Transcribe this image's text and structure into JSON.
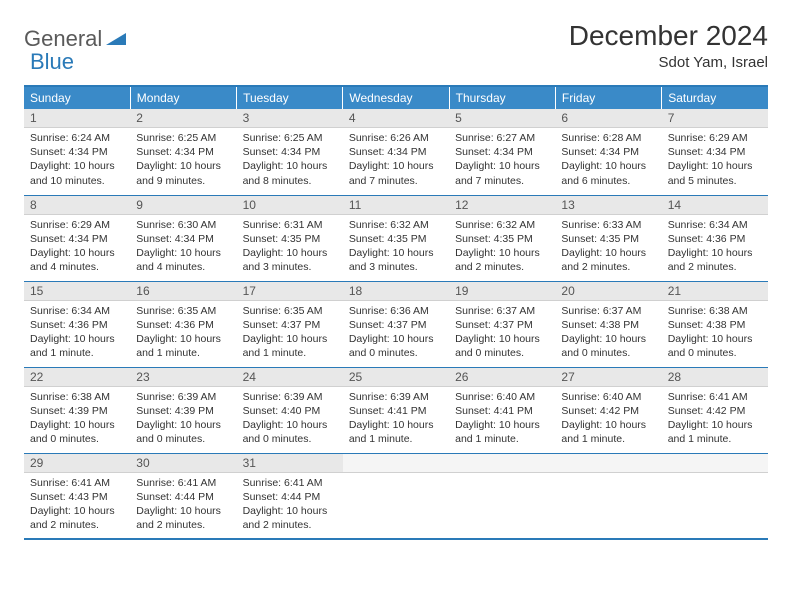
{
  "logo": {
    "general": "General",
    "blue": "Blue"
  },
  "header": {
    "month": "December 2024",
    "location": "Sdot Yam, Israel"
  },
  "colors": {
    "accent": "#3a8ac8",
    "border": "#2a7ab8",
    "daynum_bg": "#e8e8e8",
    "text": "#333333"
  },
  "weekdays": [
    "Sunday",
    "Monday",
    "Tuesday",
    "Wednesday",
    "Thursday",
    "Friday",
    "Saturday"
  ],
  "days": [
    {
      "n": "1",
      "sunrise": "Sunrise: 6:24 AM",
      "sunset": "Sunset: 4:34 PM",
      "daylight": "Daylight: 10 hours and 10 minutes."
    },
    {
      "n": "2",
      "sunrise": "Sunrise: 6:25 AM",
      "sunset": "Sunset: 4:34 PM",
      "daylight": "Daylight: 10 hours and 9 minutes."
    },
    {
      "n": "3",
      "sunrise": "Sunrise: 6:25 AM",
      "sunset": "Sunset: 4:34 PM",
      "daylight": "Daylight: 10 hours and 8 minutes."
    },
    {
      "n": "4",
      "sunrise": "Sunrise: 6:26 AM",
      "sunset": "Sunset: 4:34 PM",
      "daylight": "Daylight: 10 hours and 7 minutes."
    },
    {
      "n": "5",
      "sunrise": "Sunrise: 6:27 AM",
      "sunset": "Sunset: 4:34 PM",
      "daylight": "Daylight: 10 hours and 7 minutes."
    },
    {
      "n": "6",
      "sunrise": "Sunrise: 6:28 AM",
      "sunset": "Sunset: 4:34 PM",
      "daylight": "Daylight: 10 hours and 6 minutes."
    },
    {
      "n": "7",
      "sunrise": "Sunrise: 6:29 AM",
      "sunset": "Sunset: 4:34 PM",
      "daylight": "Daylight: 10 hours and 5 minutes."
    },
    {
      "n": "8",
      "sunrise": "Sunrise: 6:29 AM",
      "sunset": "Sunset: 4:34 PM",
      "daylight": "Daylight: 10 hours and 4 minutes."
    },
    {
      "n": "9",
      "sunrise": "Sunrise: 6:30 AM",
      "sunset": "Sunset: 4:34 PM",
      "daylight": "Daylight: 10 hours and 4 minutes."
    },
    {
      "n": "10",
      "sunrise": "Sunrise: 6:31 AM",
      "sunset": "Sunset: 4:35 PM",
      "daylight": "Daylight: 10 hours and 3 minutes."
    },
    {
      "n": "11",
      "sunrise": "Sunrise: 6:32 AM",
      "sunset": "Sunset: 4:35 PM",
      "daylight": "Daylight: 10 hours and 3 minutes."
    },
    {
      "n": "12",
      "sunrise": "Sunrise: 6:32 AM",
      "sunset": "Sunset: 4:35 PM",
      "daylight": "Daylight: 10 hours and 2 minutes."
    },
    {
      "n": "13",
      "sunrise": "Sunrise: 6:33 AM",
      "sunset": "Sunset: 4:35 PM",
      "daylight": "Daylight: 10 hours and 2 minutes."
    },
    {
      "n": "14",
      "sunrise": "Sunrise: 6:34 AM",
      "sunset": "Sunset: 4:36 PM",
      "daylight": "Daylight: 10 hours and 2 minutes."
    },
    {
      "n": "15",
      "sunrise": "Sunrise: 6:34 AM",
      "sunset": "Sunset: 4:36 PM",
      "daylight": "Daylight: 10 hours and 1 minute."
    },
    {
      "n": "16",
      "sunrise": "Sunrise: 6:35 AM",
      "sunset": "Sunset: 4:36 PM",
      "daylight": "Daylight: 10 hours and 1 minute."
    },
    {
      "n": "17",
      "sunrise": "Sunrise: 6:35 AM",
      "sunset": "Sunset: 4:37 PM",
      "daylight": "Daylight: 10 hours and 1 minute."
    },
    {
      "n": "18",
      "sunrise": "Sunrise: 6:36 AM",
      "sunset": "Sunset: 4:37 PM",
      "daylight": "Daylight: 10 hours and 0 minutes."
    },
    {
      "n": "19",
      "sunrise": "Sunrise: 6:37 AM",
      "sunset": "Sunset: 4:37 PM",
      "daylight": "Daylight: 10 hours and 0 minutes."
    },
    {
      "n": "20",
      "sunrise": "Sunrise: 6:37 AM",
      "sunset": "Sunset: 4:38 PM",
      "daylight": "Daylight: 10 hours and 0 minutes."
    },
    {
      "n": "21",
      "sunrise": "Sunrise: 6:38 AM",
      "sunset": "Sunset: 4:38 PM",
      "daylight": "Daylight: 10 hours and 0 minutes."
    },
    {
      "n": "22",
      "sunrise": "Sunrise: 6:38 AM",
      "sunset": "Sunset: 4:39 PM",
      "daylight": "Daylight: 10 hours and 0 minutes."
    },
    {
      "n": "23",
      "sunrise": "Sunrise: 6:39 AM",
      "sunset": "Sunset: 4:39 PM",
      "daylight": "Daylight: 10 hours and 0 minutes."
    },
    {
      "n": "24",
      "sunrise": "Sunrise: 6:39 AM",
      "sunset": "Sunset: 4:40 PM",
      "daylight": "Daylight: 10 hours and 0 minutes."
    },
    {
      "n": "25",
      "sunrise": "Sunrise: 6:39 AM",
      "sunset": "Sunset: 4:41 PM",
      "daylight": "Daylight: 10 hours and 1 minute."
    },
    {
      "n": "26",
      "sunrise": "Sunrise: 6:40 AM",
      "sunset": "Sunset: 4:41 PM",
      "daylight": "Daylight: 10 hours and 1 minute."
    },
    {
      "n": "27",
      "sunrise": "Sunrise: 6:40 AM",
      "sunset": "Sunset: 4:42 PM",
      "daylight": "Daylight: 10 hours and 1 minute."
    },
    {
      "n": "28",
      "sunrise": "Sunrise: 6:41 AM",
      "sunset": "Sunset: 4:42 PM",
      "daylight": "Daylight: 10 hours and 1 minute."
    },
    {
      "n": "29",
      "sunrise": "Sunrise: 6:41 AM",
      "sunset": "Sunset: 4:43 PM",
      "daylight": "Daylight: 10 hours and 2 minutes."
    },
    {
      "n": "30",
      "sunrise": "Sunrise: 6:41 AM",
      "sunset": "Sunset: 4:44 PM",
      "daylight": "Daylight: 10 hours and 2 minutes."
    },
    {
      "n": "31",
      "sunrise": "Sunrise: 6:41 AM",
      "sunset": "Sunset: 4:44 PM",
      "daylight": "Daylight: 10 hours and 2 minutes."
    }
  ],
  "layout": {
    "first_weekday_offset": 0,
    "trailing_empty": 4
  }
}
